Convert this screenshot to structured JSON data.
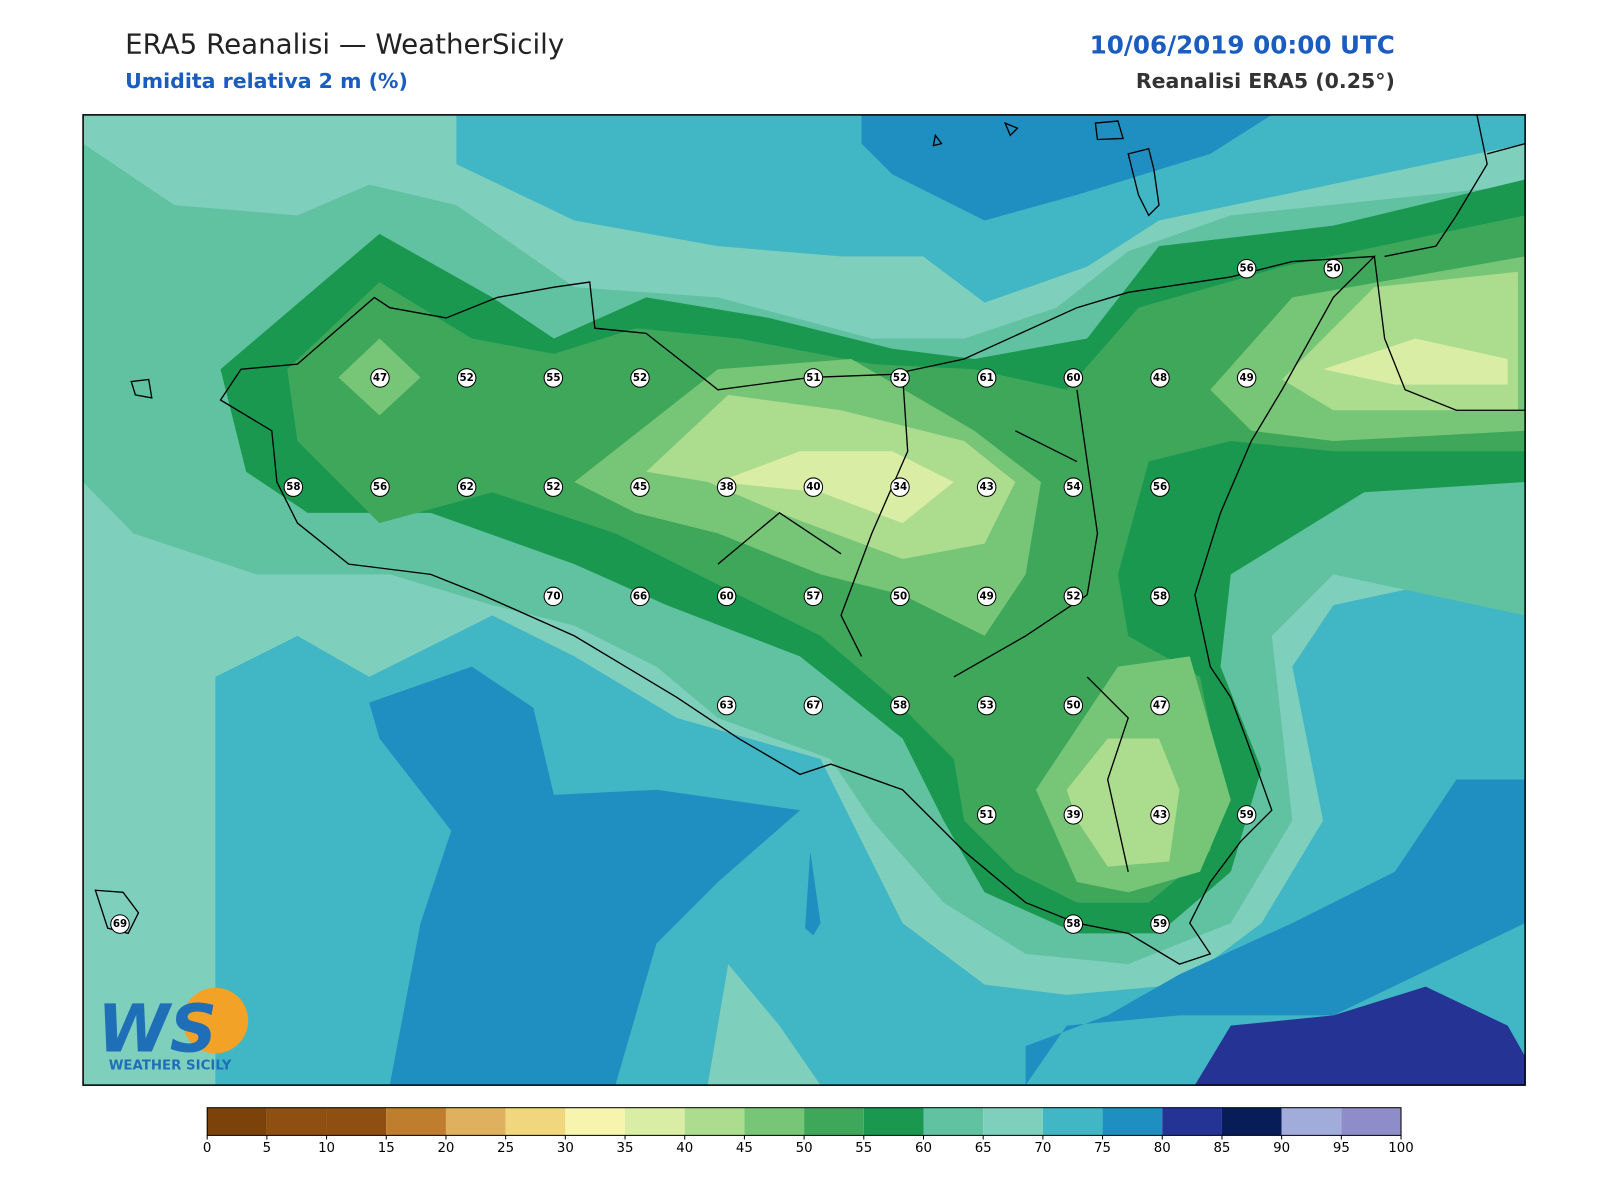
{
  "header": {
    "title": "ERA5 Reanalisi — WeatherSicily",
    "subtitle": "Umidita relativa 2 m (%)",
    "datetime": "10/06/2019 00:00 UTC",
    "source": "Reanalisi ERA5 (0.25°)"
  },
  "map": {
    "points": [
      56,
      50,
      47,
      52,
      55,
      52,
      51,
      52,
      61,
      60,
      48,
      49,
      58,
      56,
      62,
      52,
      45,
      38,
      40,
      34,
      43,
      54,
      56,
      70,
      66,
      60,
      57,
      50,
      49,
      52,
      58,
      63,
      67,
      58,
      53,
      50,
      47,
      51,
      39,
      43,
      59,
      69,
      58,
      59
    ]
  },
  "colorbar": {
    "ticks": [
      0,
      5,
      10,
      15,
      20,
      25,
      30,
      35,
      40,
      45,
      50,
      55,
      60,
      65,
      70,
      75,
      80,
      85,
      90,
      95,
      100
    ],
    "colors": [
      "#7b430a",
      "#8e4f11",
      "#8e4f11",
      "#bf7e2e",
      "#dfb05d",
      "#f0d67d",
      "#f7f5ad",
      "#d9eda4",
      "#acdc8e",
      "#77c577",
      "#3fa75a",
      "#1a9850",
      "#60c2a0",
      "#7fcfbd",
      "#41b6c4",
      "#1f8fc1",
      "#253494",
      "#081d58",
      "#a2acdb",
      "#8e8cc9"
    ]
  },
  "logo": {
    "mark": "WS",
    "name": "WEATHER SICILY"
  }
}
